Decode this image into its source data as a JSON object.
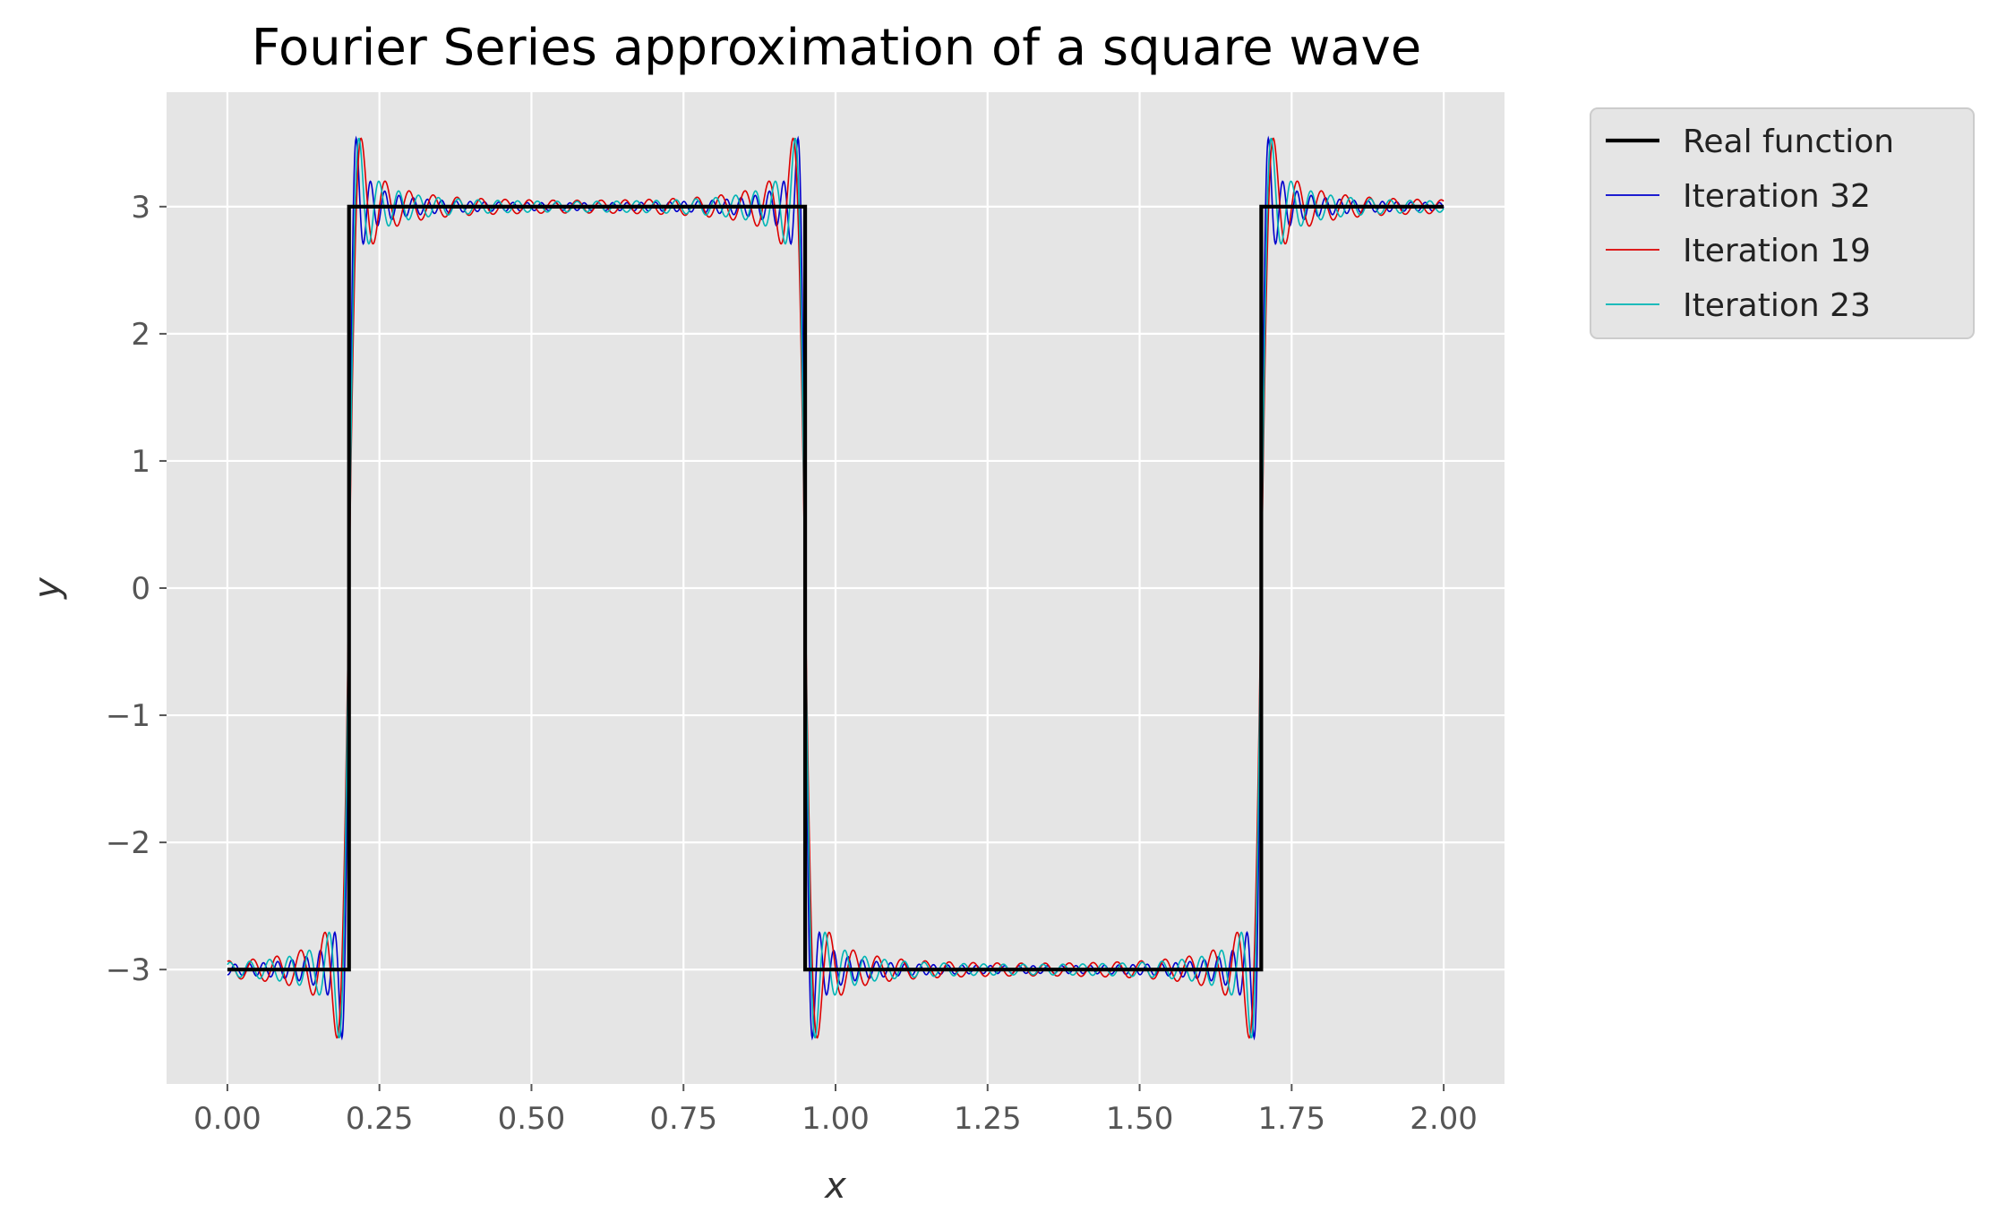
{
  "chart_data": {
    "type": "line",
    "title": "Fourier Series approximation of a square wave",
    "xlabel": "x",
    "ylabel": "y",
    "xlim": [
      -0.1,
      2.1
    ],
    "ylim": [
      -3.9,
      3.9
    ],
    "xticks": [
      0.0,
      0.25,
      0.5,
      0.75,
      1.0,
      1.25,
      1.5,
      1.75,
      2.0
    ],
    "xtick_labels": [
      "0.00",
      "0.25",
      "0.50",
      "0.75",
      "1.00",
      "1.25",
      "1.50",
      "1.75",
      "2.00"
    ],
    "yticks": [
      -3,
      -2,
      -1,
      0,
      1,
      2,
      3
    ],
    "ytick_labels": [
      "−3",
      "−2",
      "−1",
      "0",
      "1",
      "2",
      "3"
    ],
    "grid": true,
    "legend_position": "outside-top-right",
    "background": "#e5e5e5",
    "square_wave": {
      "amplitude": 3,
      "period": 1.5,
      "low_start": 0.0,
      "high_start": 0.2,
      "x_range": [
        0.0,
        2.0
      ]
    },
    "series": [
      {
        "name": "Real function",
        "color": "#000000",
        "kind": "exact",
        "points": [
          [
            0.0,
            -3
          ],
          [
            0.2,
            -3
          ],
          [
            0.2,
            3
          ],
          [
            0.95,
            3
          ],
          [
            0.95,
            -3
          ],
          [
            1.7,
            -3
          ],
          [
            1.7,
            3
          ],
          [
            2.0,
            3
          ]
        ]
      },
      {
        "name": "Iteration 32",
        "color": "#0000cc",
        "kind": "fourier",
        "terms": 32
      },
      {
        "name": "Iteration 19",
        "color": "#dd0000",
        "kind": "fourier",
        "terms": 19
      },
      {
        "name": "Iteration 23",
        "color": "#00b5b5",
        "kind": "fourier",
        "terms": 23
      }
    ]
  }
}
